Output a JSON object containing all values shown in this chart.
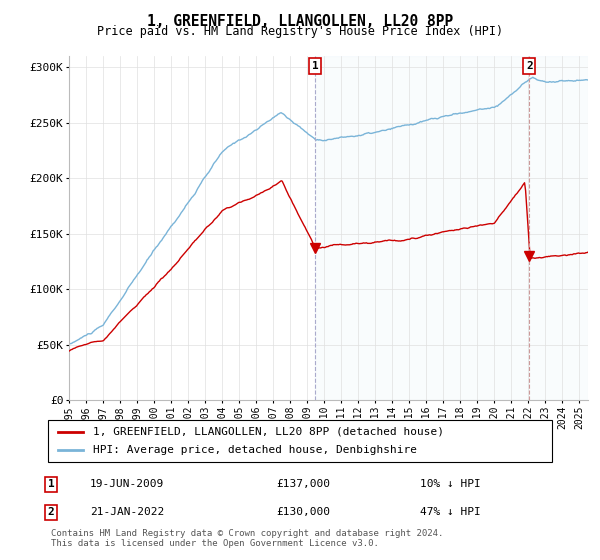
{
  "title": "1, GREENFIELD, LLANGOLLEN, LL20 8PP",
  "subtitle": "Price paid vs. HM Land Registry's House Price Index (HPI)",
  "ylim": [
    0,
    310000
  ],
  "yticks": [
    0,
    50000,
    100000,
    150000,
    200000,
    250000,
    300000
  ],
  "ytick_labels": [
    "£0",
    "£50K",
    "£100K",
    "£150K",
    "£200K",
    "£250K",
    "£300K"
  ],
  "legend_line1": "1, GREENFIELD, LLANGOLLEN, LL20 8PP (detached house)",
  "legend_line2": "HPI: Average price, detached house, Denbighshire",
  "marker1_date": "19-JUN-2009",
  "marker1_price": "£137,000",
  "marker1_hpi": "10% ↓ HPI",
  "marker2_date": "21-JAN-2022",
  "marker2_price": "£130,000",
  "marker2_hpi": "47% ↓ HPI",
  "footnote1": "Contains HM Land Registry data © Crown copyright and database right 2024.",
  "footnote2": "This data is licensed under the Open Government Licence v3.0.",
  "hpi_color": "#7ab4d8",
  "price_color": "#cc0000",
  "marker1_x": 2009.47,
  "marker2_x": 2022.05,
  "marker1_y": 137000,
  "marker2_y": 130000,
  "xmin": 1995,
  "xmax": 2025.5
}
